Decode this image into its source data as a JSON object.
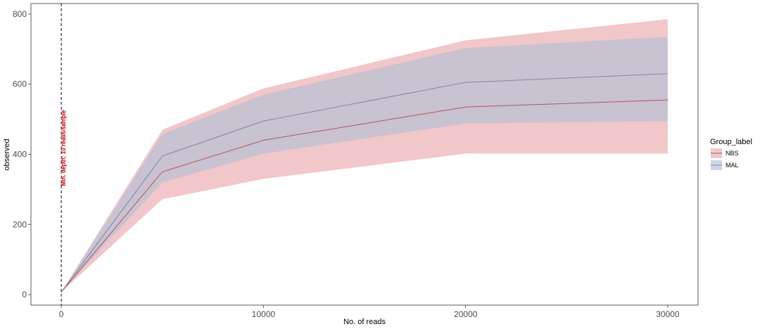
{
  "chart_data": {
    "type": "area",
    "xlabel": "No. of reads",
    "ylabel": "observed",
    "xlim": [
      -1500,
      31500
    ],
    "ylim": [
      -30,
      830
    ],
    "x_ticks": [
      0,
      10000,
      20000,
      30000
    ],
    "y_ticks": [
      0,
      200,
      400,
      600,
      800
    ],
    "x": [
      0,
      5000,
      10000,
      20000,
      30000
    ],
    "legend_title": "Group_label",
    "legend_position": "right",
    "grid": false,
    "series": [
      {
        "name": "NBS",
        "color": "#b8525f",
        "fill": "#e8a5aa",
        "mean": [
          7,
          350,
          440,
          535,
          555
        ],
        "lower": [
          7,
          272,
          330,
          402,
          402
        ],
        "upper": [
          7,
          470,
          588,
          725,
          785
        ]
      },
      {
        "name": "MAL",
        "color": "#7e86ad",
        "fill": "#a8bdd6",
        "mean": [
          7,
          395,
          495,
          605,
          630
        ],
        "lower": [
          7,
          320,
          402,
          488,
          495
        ],
        "upper": [
          7,
          458,
          570,
          703,
          735
        ]
      }
    ],
    "vline": {
      "x": 0,
      "style": "dashed",
      "label": "Min. depth: 10 reads/sample",
      "label_color": "#cc0000"
    }
  }
}
